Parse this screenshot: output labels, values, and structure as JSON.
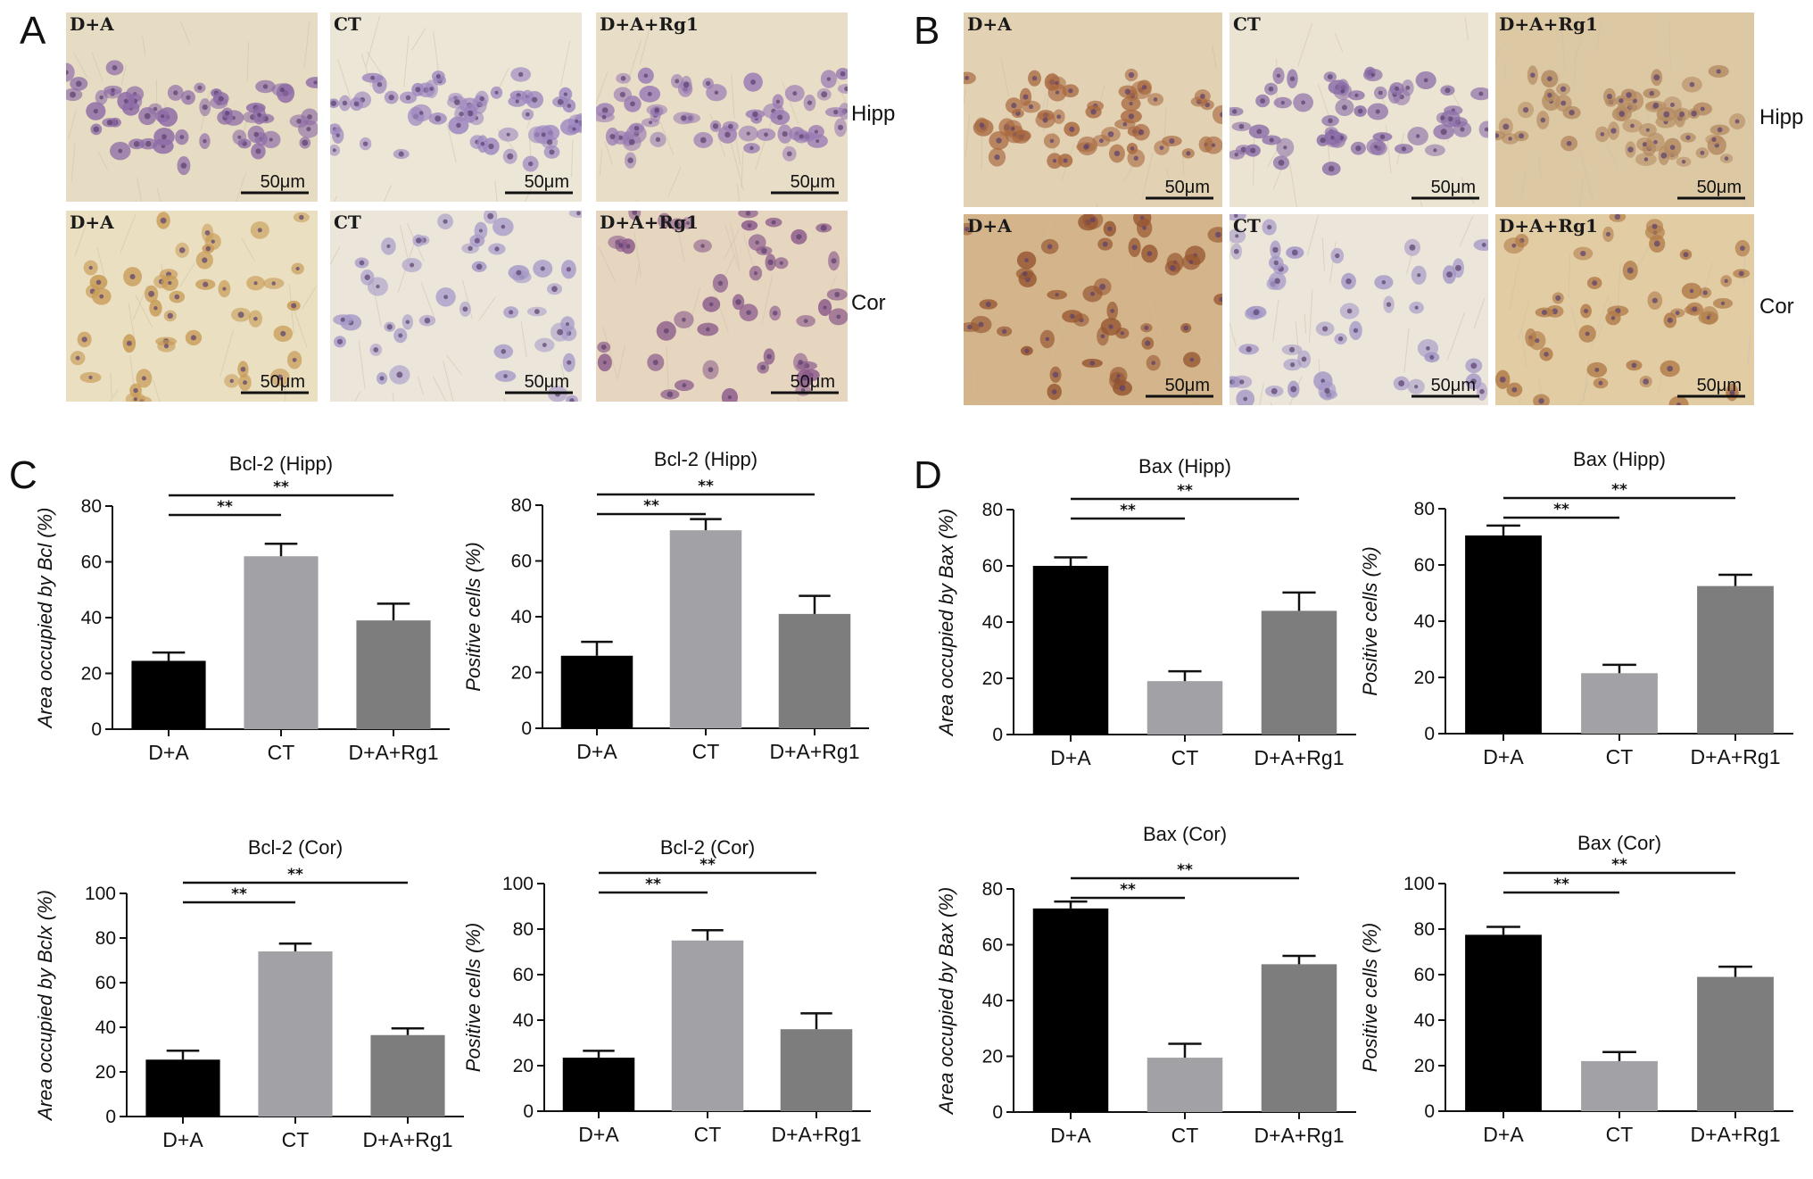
{
  "figure": {
    "panel_labels": [
      "A",
      "B",
      "C",
      "D"
    ],
    "group_labels": [
      "D+A",
      "CT",
      "D+A+Rg1"
    ],
    "region_labels": {
      "hipp": "Hipp",
      "cor": "Cor"
    },
    "scale_bar": "50μm",
    "micrographs": {
      "A": {
        "hipp": [
          {
            "stain": "brown",
            "tone": "#e6dcc4",
            "cell": "#8d6aa6"
          },
          {
            "stain": "purple",
            "tone": "#ece6d6",
            "cell": "#9c86bf"
          },
          {
            "stain": "mixed",
            "tone": "#e8ddc6",
            "cell": "#9a7bb4"
          }
        ],
        "cor": [
          {
            "stain": "brown",
            "tone": "#eadfc0",
            "cell": "#c79a55"
          },
          {
            "stain": "purple",
            "tone": "#ebe5da",
            "cell": "#a699c8"
          },
          {
            "stain": "mixed",
            "tone": "#e6d6c0",
            "cell": "#8b5a8a"
          }
        ]
      },
      "B": {
        "hipp": [
          {
            "stain": "brown",
            "tone": "#e2d1b3",
            "cell": "#a8683f"
          },
          {
            "stain": "purple",
            "tone": "#ebe4d3",
            "cell": "#8c6fa8"
          },
          {
            "stain": "mixed",
            "tone": "#dcc9a4",
            "cell": "#b48a62"
          }
        ],
        "cor": [
          {
            "stain": "brown",
            "tone": "#d4b48a",
            "cell": "#94542f"
          },
          {
            "stain": "purple",
            "tone": "#ebe5da",
            "cell": "#a396c6"
          },
          {
            "stain": "mixed",
            "tone": "#e2cca4",
            "cell": "#b07a48"
          }
        ]
      }
    }
  },
  "chart_data": [
    {
      "panel": "C",
      "type": "bar",
      "title": "Bcl-2 (Hipp)",
      "ylabel": "Area occupied by Bcl (%)",
      "categories": [
        "D+A",
        "CT",
        "D+A+Rg1"
      ],
      "values": [
        24.5,
        62,
        39
      ],
      "errors": [
        3,
        4.5,
        6
      ],
      "ylim": [
        0,
        80
      ],
      "yticks": [
        0,
        20,
        40,
        60,
        80
      ],
      "colors": [
        "#000000",
        "#a2a2a6",
        "#7d7d7d"
      ],
      "significance": [
        {
          "from": 0,
          "to": 1,
          "label": "**"
        },
        {
          "from": 0,
          "to": 2,
          "label": "**"
        }
      ]
    },
    {
      "panel": "C",
      "type": "bar",
      "title": "Bcl-2 (Hipp)",
      "ylabel": "Positive cells (%)",
      "categories": [
        "D+A",
        "CT",
        "D+A+Rg1"
      ],
      "values": [
        26,
        71,
        41
      ],
      "errors": [
        5,
        4,
        6.5
      ],
      "ylim": [
        0,
        80
      ],
      "yticks": [
        0,
        20,
        40,
        60,
        80
      ],
      "colors": [
        "#000000",
        "#a2a2a6",
        "#7d7d7d"
      ],
      "significance": [
        {
          "from": 0,
          "to": 1,
          "label": "**"
        },
        {
          "from": 0,
          "to": 2,
          "label": "**"
        }
      ]
    },
    {
      "panel": "C",
      "type": "bar",
      "title": "Bcl-2 (Cor)",
      "ylabel": "Area occupied by Bclx (%)",
      "categories": [
        "D+A",
        "CT",
        "D+A+Rg1"
      ],
      "values": [
        25.5,
        74,
        36.5
      ],
      "errors": [
        4,
        3.5,
        3
      ],
      "ylim": [
        0,
        100
      ],
      "yticks": [
        0,
        20,
        40,
        60,
        80,
        100
      ],
      "colors": [
        "#000000",
        "#a2a2a6",
        "#7d7d7d"
      ],
      "significance": [
        {
          "from": 0,
          "to": 1,
          "label": "**"
        },
        {
          "from": 0,
          "to": 2,
          "label": "**"
        }
      ]
    },
    {
      "panel": "C",
      "type": "bar",
      "title": "Bcl-2 (Cor)",
      "ylabel": "Positive cells (%)",
      "categories": [
        "D+A",
        "CT",
        "D+A+Rg1"
      ],
      "values": [
        23.5,
        75,
        36
      ],
      "errors": [
        3,
        4.5,
        7
      ],
      "ylim": [
        0,
        100
      ],
      "yticks": [
        0,
        20,
        40,
        60,
        80,
        100
      ],
      "colors": [
        "#000000",
        "#a2a2a6",
        "#7d7d7d"
      ],
      "significance": [
        {
          "from": 0,
          "to": 1,
          "label": "**"
        },
        {
          "from": 0,
          "to": 2,
          "label": "**"
        }
      ]
    },
    {
      "panel": "D",
      "type": "bar",
      "title": "Bax (Hipp)",
      "ylabel": "Area occupied by Bax (%)",
      "categories": [
        "D+A",
        "CT",
        "D+A+Rg1"
      ],
      "values": [
        60,
        19,
        44
      ],
      "errors": [
        3,
        3.5,
        6.5
      ],
      "ylim": [
        0,
        80
      ],
      "yticks": [
        0,
        20,
        40,
        60,
        80
      ],
      "colors": [
        "#000000",
        "#a2a2a6",
        "#7d7d7d"
      ],
      "significance": [
        {
          "from": 0,
          "to": 1,
          "label": "**"
        },
        {
          "from": 0,
          "to": 2,
          "label": "**"
        }
      ]
    },
    {
      "panel": "D",
      "type": "bar",
      "title": "Bax (Hipp)",
      "ylabel": "Positive cells (%)",
      "categories": [
        "D+A",
        "CT",
        "D+A+Rg1"
      ],
      "values": [
        70.5,
        21.5,
        52.5
      ],
      "errors": [
        3.5,
        3,
        4
      ],
      "ylim": [
        0,
        80
      ],
      "yticks": [
        0,
        20,
        40,
        60,
        80
      ],
      "colors": [
        "#000000",
        "#a2a2a6",
        "#7d7d7d"
      ],
      "significance": [
        {
          "from": 0,
          "to": 1,
          "label": "**"
        },
        {
          "from": 0,
          "to": 2,
          "label": "**"
        }
      ]
    },
    {
      "panel": "D",
      "type": "bar",
      "title": "Bax (Cor)",
      "ylabel": "Area occupied by Bax (%)",
      "categories": [
        "D+A",
        "CT",
        "D+A+Rg1"
      ],
      "values": [
        73,
        19.5,
        53
      ],
      "errors": [
        2.5,
        5,
        3
      ],
      "ylim": [
        0,
        80
      ],
      "yticks": [
        0,
        20,
        40,
        60,
        80
      ],
      "colors": [
        "#000000",
        "#a2a2a6",
        "#7d7d7d"
      ],
      "significance": [
        {
          "from": 0,
          "to": 1,
          "label": "**"
        },
        {
          "from": 0,
          "to": 2,
          "label": "**"
        }
      ]
    },
    {
      "panel": "D",
      "type": "bar",
      "title": "Bax (Cor)",
      "ylabel": "Positive cells (%)",
      "categories": [
        "D+A",
        "CT",
        "D+A+Rg1"
      ],
      "values": [
        77.5,
        22,
        59
      ],
      "errors": [
        3.5,
        4,
        4.5
      ],
      "ylim": [
        0,
        100
      ],
      "yticks": [
        0,
        20,
        40,
        60,
        80,
        100
      ],
      "colors": [
        "#000000",
        "#a2a2a6",
        "#7d7d7d"
      ],
      "significance": [
        {
          "from": 0,
          "to": 1,
          "label": "**"
        },
        {
          "from": 0,
          "to": 2,
          "label": "**"
        }
      ]
    }
  ]
}
